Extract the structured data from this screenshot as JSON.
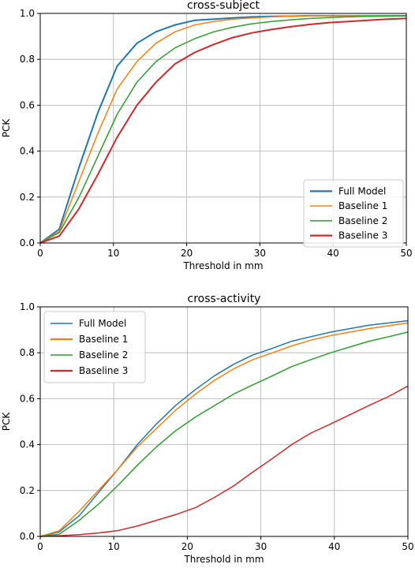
{
  "chart_data": [
    {
      "type": "line",
      "title": "cross-subject",
      "xlabel": "Threshold in mm",
      "ylabel": "PCK",
      "xlim": [
        0,
        50
      ],
      "ylim": [
        0,
        1
      ],
      "x_ticks": [
        "0",
        "10",
        "20",
        "30",
        "40",
        "50"
      ],
      "y_ticks": [
        "0.0",
        "0.2",
        "0.4",
        "0.6",
        "0.8",
        "1.0"
      ],
      "grid": true,
      "legend_position": "lower-right",
      "x": [
        0,
        2.6,
        5.3,
        7.9,
        10.5,
        13.2,
        15.8,
        18.4,
        21.1,
        23.7,
        26.3,
        28.9,
        31.6,
        34.2,
        36.8,
        39.5,
        42.1,
        44.7,
        47.4,
        50
      ],
      "series": [
        {
          "name": "Full Model",
          "color": "#1f77b4",
          "values": [
            0,
            0.06,
            0.33,
            0.57,
            0.77,
            0.87,
            0.92,
            0.95,
            0.97,
            0.975,
            0.98,
            0.985,
            0.987,
            0.988,
            0.99,
            0.99,
            0.99,
            0.99,
            0.99,
            0.99
          ]
        },
        {
          "name": "Baseline 1",
          "color": "#ff7f0e",
          "values": [
            0,
            0.05,
            0.27,
            0.48,
            0.67,
            0.79,
            0.87,
            0.92,
            0.95,
            0.965,
            0.975,
            0.98,
            0.985,
            0.988,
            0.99,
            0.99,
            0.99,
            0.99,
            0.99,
            0.99
          ]
        },
        {
          "name": "Baseline 2",
          "color": "#2ca02c",
          "values": [
            0,
            0.045,
            0.2,
            0.38,
            0.56,
            0.7,
            0.79,
            0.85,
            0.89,
            0.92,
            0.94,
            0.955,
            0.965,
            0.972,
            0.978,
            0.982,
            0.985,
            0.987,
            0.988,
            0.99
          ]
        },
        {
          "name": "Baseline 3",
          "color": "#d62728",
          "values": [
            0,
            0.03,
            0.15,
            0.3,
            0.46,
            0.6,
            0.7,
            0.78,
            0.83,
            0.865,
            0.895,
            0.915,
            0.93,
            0.942,
            0.952,
            0.96,
            0.965,
            0.97,
            0.975,
            0.978
          ]
        }
      ]
    },
    {
      "type": "line",
      "title": "cross-activity",
      "xlabel": "Threshold in mm",
      "ylabel": "PCK",
      "xlim": [
        0,
        50
      ],
      "ylim": [
        0,
        1
      ],
      "x_ticks": [
        "0",
        "10",
        "20",
        "30",
        "40",
        "50"
      ],
      "y_ticks": [
        "0.0",
        "0.2",
        "0.4",
        "0.6",
        "0.8",
        "1.0"
      ],
      "grid": true,
      "legend_position": "upper-left",
      "x": [
        0,
        2.6,
        5.3,
        7.9,
        10.5,
        13.2,
        15.8,
        18.4,
        21.1,
        23.7,
        26.3,
        28.9,
        31.6,
        34.2,
        36.8,
        39.5,
        42.1,
        44.7,
        47.4,
        50
      ],
      "series": [
        {
          "name": "Full Model",
          "color": "#1f77b4",
          "values": [
            0,
            0.02,
            0.09,
            0.19,
            0.29,
            0.4,
            0.49,
            0.57,
            0.64,
            0.7,
            0.75,
            0.79,
            0.82,
            0.85,
            0.87,
            0.89,
            0.905,
            0.92,
            0.93,
            0.94
          ]
        },
        {
          "name": "Baseline 1",
          "color": "#ff7f0e",
          "values": [
            0,
            0.025,
            0.11,
            0.2,
            0.29,
            0.39,
            0.47,
            0.55,
            0.62,
            0.68,
            0.73,
            0.77,
            0.8,
            0.83,
            0.855,
            0.875,
            0.89,
            0.905,
            0.918,
            0.93
          ]
        },
        {
          "name": "Baseline 2",
          "color": "#2ca02c",
          "values": [
            0,
            0.01,
            0.07,
            0.14,
            0.22,
            0.31,
            0.39,
            0.46,
            0.52,
            0.57,
            0.62,
            0.66,
            0.7,
            0.74,
            0.77,
            0.8,
            0.825,
            0.85,
            0.87,
            0.89
          ]
        },
        {
          "name": "Baseline 3",
          "color": "#d62728",
          "values": [
            0,
            0.003,
            0.008,
            0.015,
            0.025,
            0.045,
            0.07,
            0.095,
            0.125,
            0.17,
            0.22,
            0.28,
            0.34,
            0.4,
            0.45,
            0.49,
            0.53,
            0.57,
            0.61,
            0.655
          ]
        }
      ]
    }
  ]
}
